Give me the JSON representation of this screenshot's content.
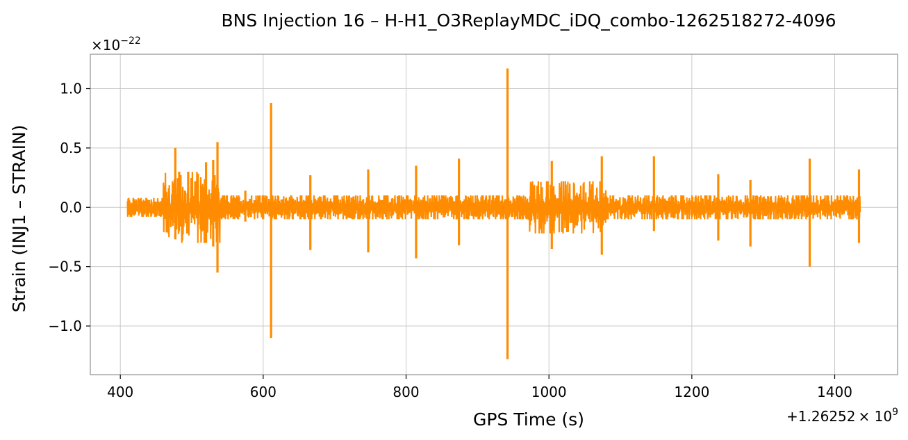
{
  "chart_data": {
    "type": "line",
    "title": "BNS Injection 16 – H-H1_O3ReplayMDC_iDQ_combo-1262518272-4096",
    "xlabel": "GPS Time (s)",
    "ylabel": "Strain (INJ1 – STRAIN)",
    "x_offset_label": "+1.26252",
    "x_offset_exponent_label": "× 10",
    "x_offset_exponent": "9",
    "y_scale_label_base": "×10",
    "y_scale_label_exponent": "−22",
    "xlim": [
      358,
      1488
    ],
    "ylim": [
      -1.41,
      1.29
    ],
    "x_ticks": [
      400,
      600,
      800,
      1000,
      1200,
      1400
    ],
    "x_tick_labels": [
      "400",
      "600",
      "800",
      "1000",
      "1200",
      "1400"
    ],
    "y_ticks": [
      -1.0,
      -0.5,
      0.0,
      0.5,
      1.0
    ],
    "y_tick_labels": [
      "−1.0",
      "−0.5",
      "0.0",
      "0.5",
      "1.0"
    ],
    "grid": true,
    "series_color": "#ff8c00",
    "x_start": 410,
    "x_end": 1436,
    "background_amplitude": 0.055,
    "envelope_segments": [
      {
        "x": [
          410,
          460
        ],
        "upper": 0.08,
        "lower": -0.08
      },
      {
        "x": [
          460,
          540
        ],
        "upper": 0.3,
        "lower": -0.3
      },
      {
        "x": [
          540,
          970
        ],
        "upper": 0.1,
        "lower": -0.1
      },
      {
        "x": [
          970,
          1080
        ],
        "upper": 0.22,
        "lower": -0.22
      },
      {
        "x": [
          1080,
          1436
        ],
        "upper": 0.1,
        "lower": -0.1
      }
    ],
    "spikes": [
      {
        "x": 477,
        "max": 0.5,
        "min": -0.27
      },
      {
        "x": 495,
        "max": 0.3,
        "min": -0.22
      },
      {
        "x": 520,
        "max": 0.38,
        "min": -0.3
      },
      {
        "x": 530,
        "max": 0.4,
        "min": -0.33
      },
      {
        "x": 536,
        "max": 0.55,
        "min": -0.55
      },
      {
        "x": 575,
        "max": 0.14,
        "min": -0.12
      },
      {
        "x": 611,
        "max": 0.88,
        "min": -1.1
      },
      {
        "x": 666,
        "max": 0.27,
        "min": -0.36
      },
      {
        "x": 747,
        "max": 0.32,
        "min": -0.38
      },
      {
        "x": 814,
        "max": 0.35,
        "min": -0.43
      },
      {
        "x": 874,
        "max": 0.41,
        "min": -0.32
      },
      {
        "x": 942,
        "max": 1.17,
        "min": -1.28
      },
      {
        "x": 1004,
        "max": 0.39,
        "min": -0.35
      },
      {
        "x": 1074,
        "max": 0.43,
        "min": -0.4
      },
      {
        "x": 1147,
        "max": 0.43,
        "min": -0.2
      },
      {
        "x": 1237,
        "max": 0.28,
        "min": -0.28
      },
      {
        "x": 1282,
        "max": 0.23,
        "min": -0.33
      },
      {
        "x": 1365,
        "max": 0.41,
        "min": -0.5
      },
      {
        "x": 1434,
        "max": 0.32,
        "min": -0.3
      }
    ]
  }
}
